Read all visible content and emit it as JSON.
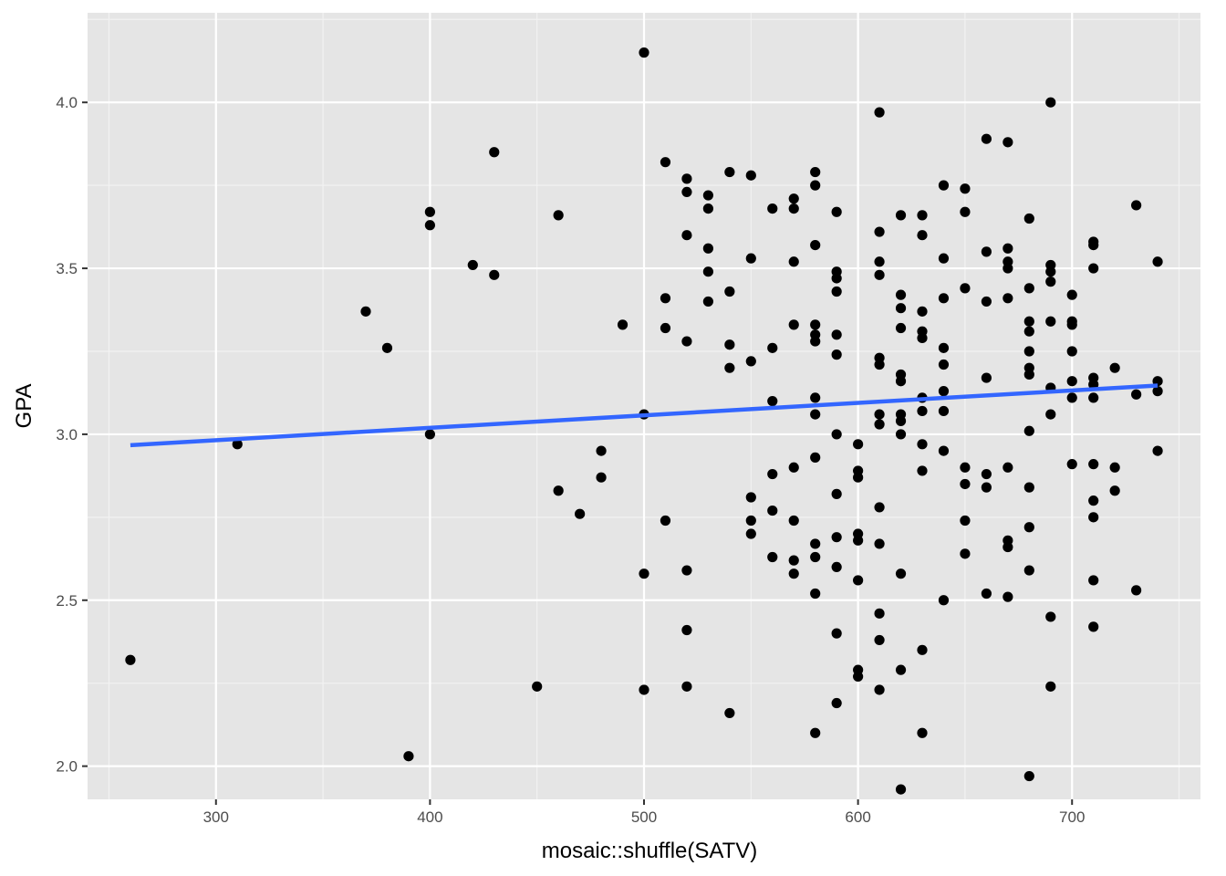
{
  "chart_data": {
    "type": "scatter",
    "title": "",
    "xlabel": "mosaic::shuffle(SATV)",
    "ylabel": "GPA",
    "xlim": [
      240,
      760
    ],
    "ylim": [
      1.9,
      4.27
    ],
    "x_ticks": [
      300,
      400,
      500,
      600,
      700
    ],
    "x_tick_labels": [
      "300",
      "400",
      "500",
      "600",
      "700"
    ],
    "y_ticks": [
      2.0,
      2.5,
      3.0,
      3.5,
      4.0
    ],
    "y_tick_labels": [
      "2.0",
      "2.5",
      "3.0",
      "3.5",
      "4.0"
    ],
    "grid": true,
    "legend": "none",
    "colors": {
      "panel": "#e5e5e5",
      "grid": "#ffffff",
      "points": "#000000",
      "fit_line": "#3366ff"
    },
    "points": [
      [
        260,
        2.32
      ],
      [
        310,
        2.97
      ],
      [
        370,
        3.37
      ],
      [
        380,
        3.26
      ],
      [
        390,
        2.03
      ],
      [
        400,
        3.67
      ],
      [
        400,
        3.63
      ],
      [
        400,
        3.0
      ],
      [
        420,
        3.51
      ],
      [
        430,
        3.85
      ],
      [
        430,
        3.48
      ],
      [
        450,
        2.24
      ],
      [
        460,
        3.66
      ],
      [
        460,
        2.83
      ],
      [
        470,
        2.76
      ],
      [
        480,
        2.95
      ],
      [
        480,
        2.87
      ],
      [
        490,
        3.33
      ],
      [
        500,
        4.15
      ],
      [
        500,
        3.06
      ],
      [
        500,
        2.58
      ],
      [
        500,
        2.23
      ],
      [
        510,
        3.82
      ],
      [
        510,
        3.41
      ],
      [
        510,
        3.32
      ],
      [
        510,
        2.74
      ],
      [
        520,
        3.77
      ],
      [
        520,
        3.73
      ],
      [
        520,
        3.6
      ],
      [
        520,
        3.28
      ],
      [
        520,
        2.59
      ],
      [
        520,
        2.41
      ],
      [
        520,
        2.24
      ],
      [
        530,
        3.72
      ],
      [
        530,
        3.68
      ],
      [
        530,
        3.56
      ],
      [
        530,
        3.49
      ],
      [
        530,
        3.4
      ],
      [
        540,
        3.79
      ],
      [
        540,
        3.43
      ],
      [
        540,
        3.27
      ],
      [
        540,
        3.2
      ],
      [
        540,
        2.16
      ],
      [
        550,
        3.78
      ],
      [
        550,
        3.53
      ],
      [
        550,
        3.22
      ],
      [
        550,
        2.81
      ],
      [
        550,
        2.74
      ],
      [
        550,
        2.7
      ],
      [
        560,
        3.68
      ],
      [
        560,
        3.26
      ],
      [
        560,
        3.1
      ],
      [
        560,
        2.88
      ],
      [
        560,
        2.77
      ],
      [
        560,
        2.63
      ],
      [
        570,
        3.71
      ],
      [
        570,
        3.68
      ],
      [
        570,
        3.52
      ],
      [
        570,
        3.33
      ],
      [
        570,
        2.9
      ],
      [
        570,
        2.74
      ],
      [
        570,
        2.62
      ],
      [
        570,
        2.58
      ],
      [
        580,
        3.79
      ],
      [
        580,
        3.75
      ],
      [
        580,
        3.57
      ],
      [
        580,
        3.33
      ],
      [
        580,
        3.3
      ],
      [
        580,
        3.28
      ],
      [
        580,
        3.11
      ],
      [
        580,
        3.06
      ],
      [
        580,
        2.93
      ],
      [
        580,
        2.67
      ],
      [
        580,
        2.63
      ],
      [
        580,
        2.52
      ],
      [
        580,
        2.1
      ],
      [
        590,
        3.67
      ],
      [
        590,
        3.49
      ],
      [
        590,
        3.47
      ],
      [
        590,
        3.43
      ],
      [
        590,
        3.3
      ],
      [
        590,
        3.24
      ],
      [
        590,
        3.0
      ],
      [
        590,
        2.82
      ],
      [
        590,
        2.69
      ],
      [
        590,
        2.6
      ],
      [
        590,
        2.4
      ],
      [
        590,
        2.19
      ],
      [
        600,
        2.97
      ],
      [
        600,
        2.89
      ],
      [
        600,
        2.87
      ],
      [
        600,
        2.7
      ],
      [
        600,
        2.68
      ],
      [
        600,
        2.56
      ],
      [
        600,
        2.29
      ],
      [
        600,
        2.27
      ],
      [
        610,
        3.97
      ],
      [
        610,
        3.61
      ],
      [
        610,
        3.52
      ],
      [
        610,
        3.48
      ],
      [
        610,
        3.23
      ],
      [
        610,
        3.21
      ],
      [
        610,
        3.06
      ],
      [
        610,
        3.03
      ],
      [
        610,
        2.78
      ],
      [
        610,
        2.67
      ],
      [
        610,
        2.46
      ],
      [
        610,
        2.38
      ],
      [
        610,
        2.23
      ],
      [
        620,
        3.66
      ],
      [
        620,
        3.42
      ],
      [
        620,
        3.38
      ],
      [
        620,
        3.32
      ],
      [
        620,
        3.18
      ],
      [
        620,
        3.16
      ],
      [
        620,
        3.06
      ],
      [
        620,
        3.04
      ],
      [
        620,
        3.0
      ],
      [
        620,
        2.58
      ],
      [
        620,
        2.29
      ],
      [
        620,
        1.93
      ],
      [
        630,
        3.66
      ],
      [
        630,
        3.6
      ],
      [
        630,
        3.37
      ],
      [
        630,
        3.31
      ],
      [
        630,
        3.29
      ],
      [
        630,
        3.11
      ],
      [
        630,
        3.07
      ],
      [
        630,
        2.97
      ],
      [
        630,
        2.89
      ],
      [
        630,
        2.35
      ],
      [
        630,
        2.1
      ],
      [
        640,
        3.75
      ],
      [
        640,
        3.53
      ],
      [
        640,
        3.41
      ],
      [
        640,
        3.26
      ],
      [
        640,
        3.21
      ],
      [
        640,
        3.13
      ],
      [
        640,
        3.07
      ],
      [
        640,
        2.95
      ],
      [
        640,
        2.5
      ],
      [
        650,
        3.74
      ],
      [
        650,
        3.67
      ],
      [
        650,
        3.44
      ],
      [
        650,
        2.9
      ],
      [
        650,
        2.85
      ],
      [
        650,
        2.74
      ],
      [
        650,
        2.64
      ],
      [
        660,
        3.89
      ],
      [
        660,
        3.55
      ],
      [
        660,
        3.4
      ],
      [
        660,
        3.17
      ],
      [
        660,
        2.88
      ],
      [
        660,
        2.84
      ],
      [
        660,
        2.52
      ],
      [
        670,
        3.88
      ],
      [
        670,
        3.56
      ],
      [
        670,
        3.52
      ],
      [
        670,
        3.5
      ],
      [
        670,
        3.41
      ],
      [
        670,
        2.9
      ],
      [
        670,
        2.68
      ],
      [
        670,
        2.66
      ],
      [
        670,
        2.51
      ],
      [
        680,
        3.65
      ],
      [
        680,
        3.44
      ],
      [
        680,
        3.34
      ],
      [
        680,
        3.31
      ],
      [
        680,
        3.25
      ],
      [
        680,
        3.2
      ],
      [
        680,
        3.18
      ],
      [
        680,
        3.01
      ],
      [
        680,
        2.84
      ],
      [
        680,
        2.72
      ],
      [
        680,
        2.59
      ],
      [
        680,
        1.97
      ],
      [
        690,
        4.0
      ],
      [
        690,
        3.51
      ],
      [
        690,
        3.49
      ],
      [
        690,
        3.46
      ],
      [
        690,
        3.34
      ],
      [
        690,
        3.14
      ],
      [
        690,
        3.06
      ],
      [
        690,
        2.45
      ],
      [
        690,
        2.24
      ],
      [
        700,
        3.42
      ],
      [
        700,
        3.34
      ],
      [
        700,
        3.33
      ],
      [
        700,
        3.25
      ],
      [
        700,
        3.16
      ],
      [
        700,
        3.11
      ],
      [
        700,
        2.91
      ],
      [
        710,
        3.58
      ],
      [
        710,
        3.57
      ],
      [
        710,
        3.5
      ],
      [
        710,
        3.17
      ],
      [
        710,
        3.15
      ],
      [
        710,
        3.11
      ],
      [
        710,
        2.91
      ],
      [
        710,
        2.8
      ],
      [
        710,
        2.75
      ],
      [
        710,
        2.56
      ],
      [
        710,
        2.42
      ],
      [
        720,
        3.2
      ],
      [
        720,
        2.9
      ],
      [
        720,
        2.83
      ],
      [
        730,
        3.69
      ],
      [
        730,
        3.12
      ],
      [
        730,
        2.53
      ],
      [
        740,
        3.52
      ],
      [
        740,
        3.16
      ],
      [
        740,
        3.13
      ],
      [
        740,
        2.95
      ]
    ],
    "fit_line": {
      "x": [
        260,
        740
      ],
      "y": [
        2.967,
        3.147
      ]
    }
  }
}
